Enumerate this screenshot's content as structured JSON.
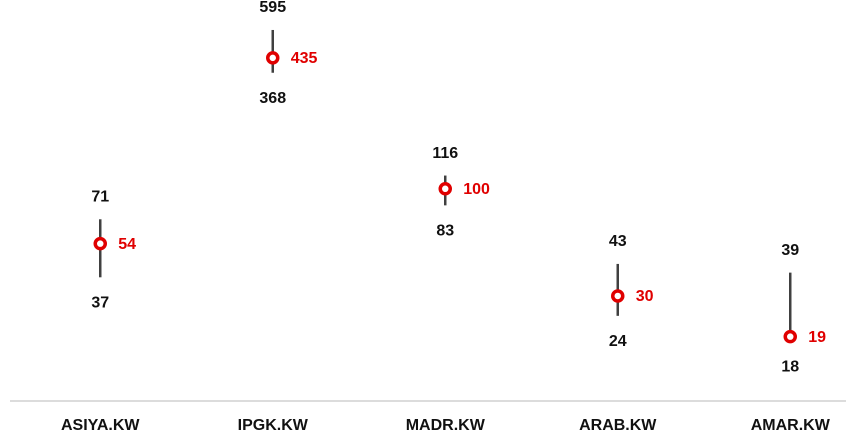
{
  "chart_data": {
    "type": "high-low-close",
    "categories": [
      "ASIYA.KW",
      "IPGK.KW",
      "MADR.KW",
      "ARAB.KW",
      "AMAR.KW"
    ],
    "high": [
      71,
      595,
      116,
      43,
      39
    ],
    "low": [
      37,
      368,
      83,
      24,
      18
    ],
    "close": [
      54,
      435,
      100,
      30,
      19
    ],
    "range_color": "#404040",
    "close_color": "#e00000",
    "ylim": [
      15,
      700
    ],
    "log_scale": true
  }
}
